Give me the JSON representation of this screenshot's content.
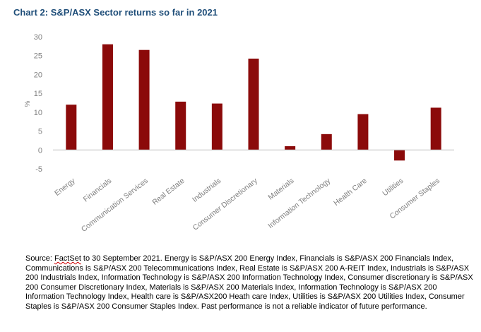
{
  "chart_data": {
    "type": "bar",
    "title": "Chart 2: S&P/ASX Sector returns so far in 2021",
    "ylabel": "%",
    "xlabel": "",
    "ylim": [
      -5,
      30
    ],
    "yticks": [
      30,
      25,
      20,
      15,
      10,
      5,
      0,
      -5
    ],
    "grid": false,
    "categories": [
      "Energy",
      "Financials",
      "Communication Services",
      "Real Estate",
      "Industrials",
      "Consumer Discretionary",
      "Materials",
      "Information Technology",
      "Health Care",
      "Utilities",
      "Consumer Staples"
    ],
    "values": [
      12.0,
      28.0,
      26.5,
      12.8,
      12.3,
      24.2,
      1.0,
      4.2,
      9.5,
      -2.8,
      11.2
    ],
    "bar_color": "#8b0a0a",
    "axis_color": "#bfbfbf",
    "tick_label_color": "#808080",
    "title_color": "#1f4e79"
  },
  "source": {
    "prefix": "Source: ",
    "highlighted": "FactSet",
    "text": " to 30 September 2021. Energy is S&P/ASX 200 Energy Index, Financials is S&P/ASX 200 Financials Index, Communications is S&P/ASX 200 Telecommunications Index, Real Estate is S&P/ASX 200 A-REIT Index, Industrials is S&P/ASX 200 Industrials Index, Information Technology is S&P/ASX 200 Information Technology Index, Consumer discretionary is S&P/ASX 200 Consumer Discretionary Index, Materials is S&P/ASX 200 Materials Index, Information Technology is S&P/ASX 200 Information Technology Index, Health care is S&P/ASX200 Heath care Index, Utilities is S&P/ASX 200 Utilities Index, Consumer Staples is S&P/ASX 200 Consumer Staples Index. Past performance is not a reliable indicator of future performance."
  }
}
